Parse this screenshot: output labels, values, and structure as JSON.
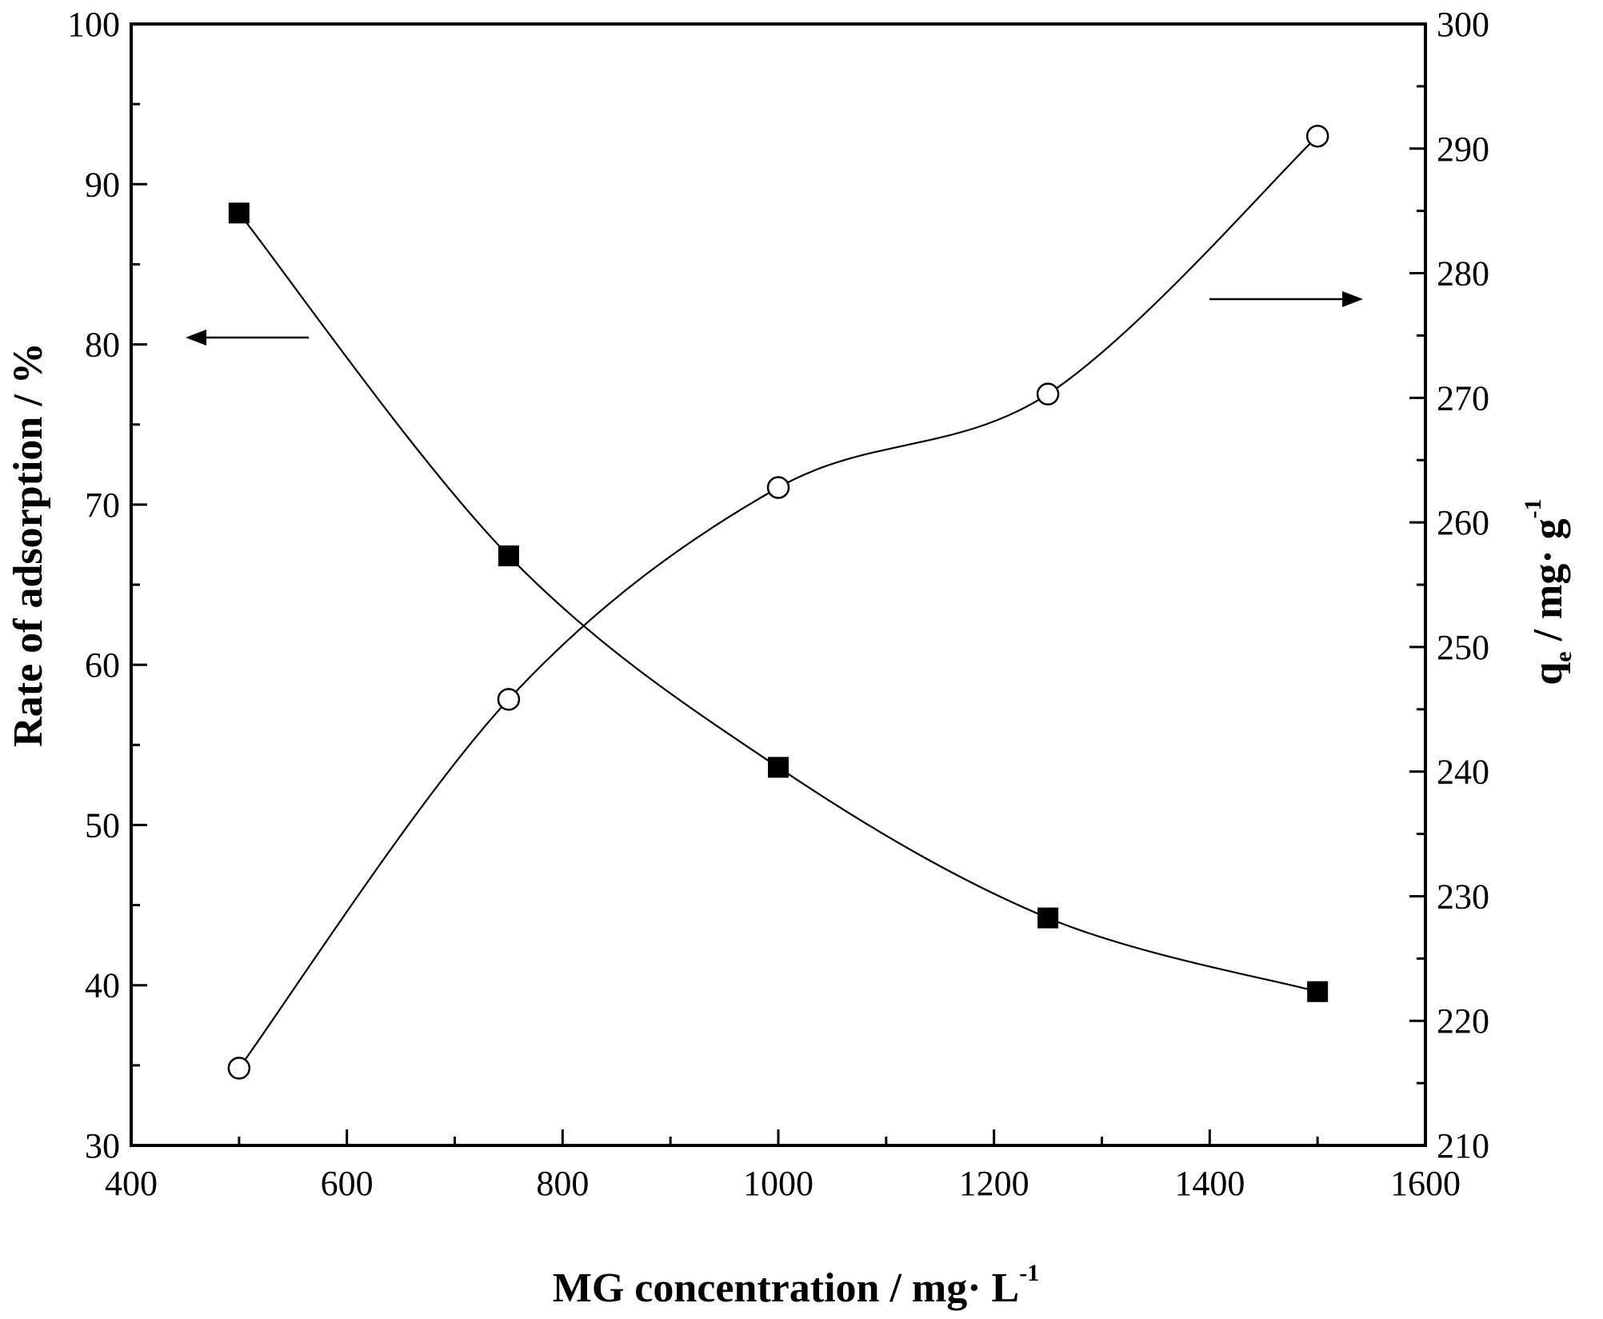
{
  "chart_data": {
    "type": "line",
    "dual_axis": true,
    "x": [
      500,
      750,
      1000,
      1250,
      1500
    ],
    "xlim": [
      400,
      1600
    ],
    "x_ticks": [
      400,
      600,
      800,
      1000,
      1200,
      1400,
      1600
    ],
    "xlabel": "MG concentration / mg· L",
    "xlabel_sup": "-1",
    "left_axis": {
      "label": "Rate of adsorption / %",
      "ylim": [
        30,
        100
      ],
      "ticks": [
        30,
        40,
        50,
        60,
        70,
        80,
        90,
        100
      ]
    },
    "right_axis": {
      "label_main": "q",
      "label_sub": "e",
      "label_rest": " /  mg· g",
      "label_sup": "-1",
      "ylim": [
        210,
        300
      ],
      "ticks": [
        210,
        220,
        230,
        240,
        250,
        260,
        270,
        280,
        290,
        300
      ]
    },
    "series": [
      {
        "name": "Rate of adsorption",
        "axis": "left",
        "marker": "filled-square",
        "values": [
          88.2,
          66.8,
          53.6,
          44.2,
          39.6
        ],
        "arrow": "left"
      },
      {
        "name": "qe",
        "axis": "right",
        "marker": "open-circle",
        "values": [
          216.2,
          245.8,
          262.8,
          270.3,
          291.0
        ],
        "arrow": "right"
      }
    ],
    "grid": false,
    "legend": "none"
  }
}
